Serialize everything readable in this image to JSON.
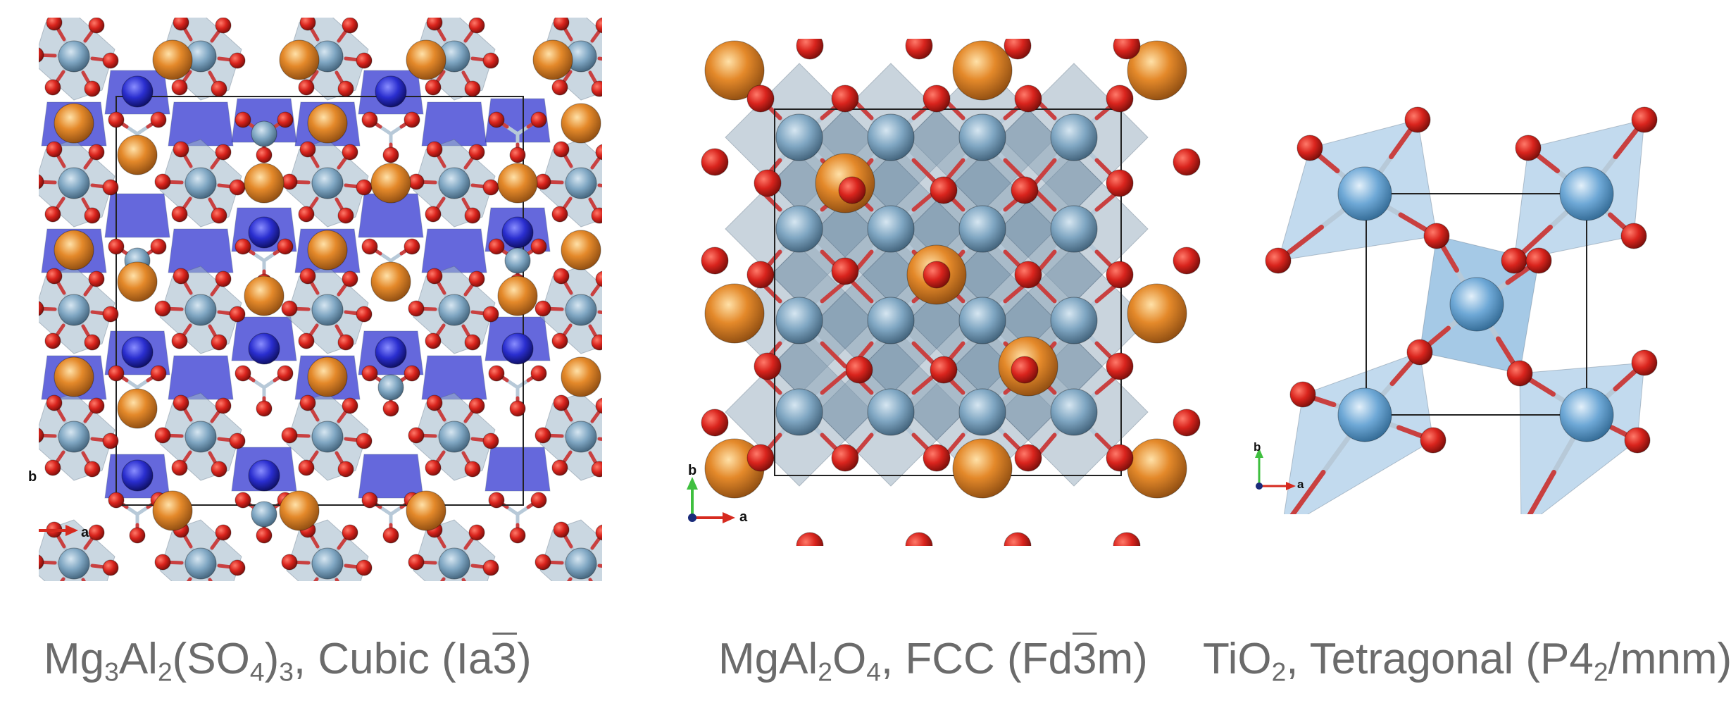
{
  "panels": [
    {
      "id": "mg3al2so43",
      "caption": {
        "pre": "Mg",
        "s1": "3",
        "m1": "Al",
        "s2": "2",
        "m2": "(SO",
        "s3": "4",
        "m3": ")",
        "s4": "3",
        "m4": ", Cubic (Ia",
        "bar": "3",
        "post": ")"
      },
      "axes": {
        "b": "b",
        "a": "a"
      }
    },
    {
      "id": "mgal2o4",
      "caption": {
        "pre": "MgAl",
        "s1": "2",
        "m1": "O",
        "s2": "4",
        "m2": ", FCC (Fd",
        "bar": "3",
        "post": "m)"
      },
      "axes": {
        "b": "b",
        "a": "a"
      }
    },
    {
      "id": "tio2",
      "caption": {
        "pre": "TiO",
        "s1": "2",
        "m1": ", Tetragonal (P4",
        "s2": "2",
        "post": "/mnm)"
      },
      "axes": {
        "b": "b",
        "a": "a"
      }
    }
  ],
  "colors": {
    "oxygen": "#d9241d",
    "magnesium": "#d97c22",
    "aluminum": "#7fa6c2",
    "sulfur": "#2a2ecf",
    "titanium": "#6ea8d6",
    "caption": "#6b6b6b",
    "axis_a": "#d62a1f",
    "axis_b": "#3fbf3f",
    "axis_c": "#1a2b7a"
  }
}
